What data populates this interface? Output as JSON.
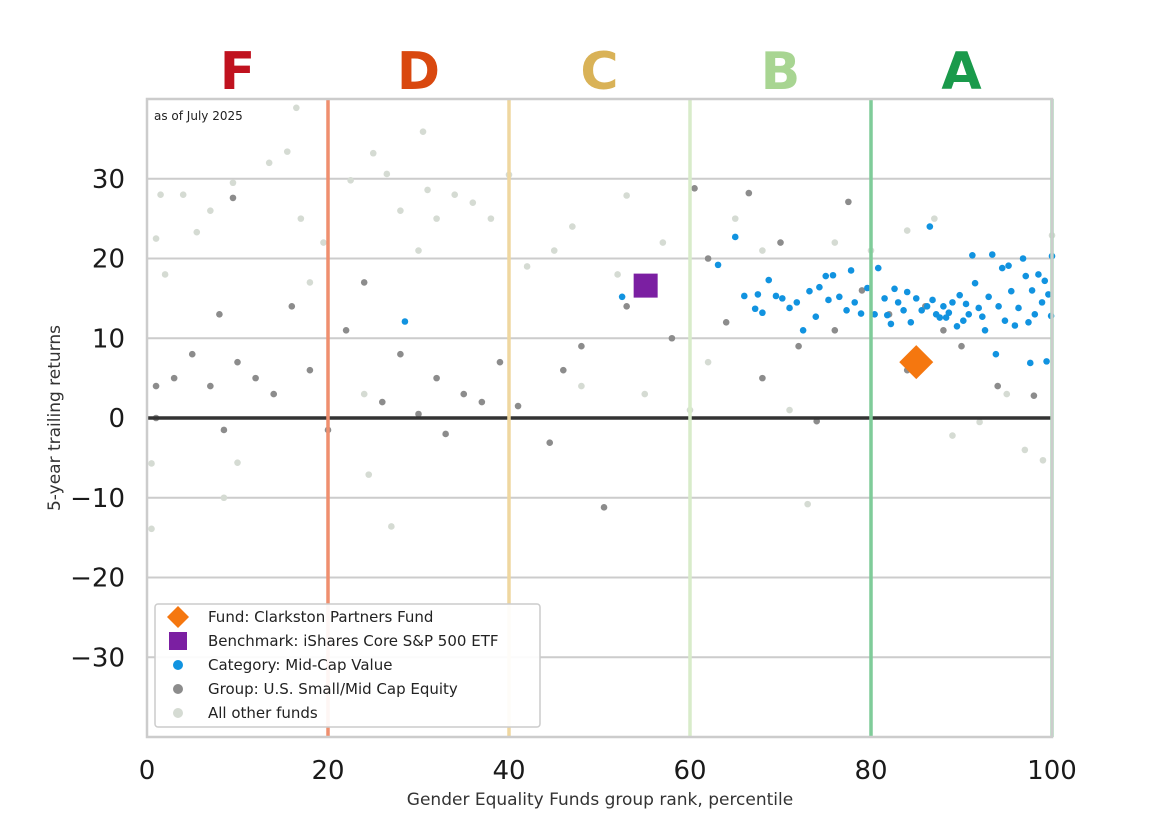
{
  "chart_data": {
    "type": "scatter",
    "note": "as of July 2025",
    "xlabel": "Gender Equality Funds group rank, percentile",
    "ylabel": "5-year trailing returns",
    "xlim": [
      0,
      100
    ],
    "ylim": [
      -40,
      40
    ],
    "xticks": [
      "0",
      "20",
      "40",
      "60",
      "80",
      "100"
    ],
    "yticks": [
      "30",
      "20",
      "10",
      "0",
      "−10",
      "−20",
      "−30"
    ],
    "grades": [
      {
        "letter": "F",
        "x": 10,
        "color": "#c0121f"
      },
      {
        "letter": "D",
        "x": 30,
        "color": "#d9480f"
      },
      {
        "letter": "C",
        "x": 50,
        "color": "#d9b257"
      },
      {
        "letter": "B",
        "x": 70,
        "color": "#a8d592"
      },
      {
        "letter": "A",
        "x": 90,
        "color": "#1a9a4b"
      }
    ],
    "grade_boundaries": [
      {
        "x": 20,
        "color": "#ef8f6f"
      },
      {
        "x": 40,
        "color": "#efd7a0"
      },
      {
        "x": 60,
        "color": "#d8ecca"
      },
      {
        "x": 80,
        "color": "#7fcc99"
      },
      {
        "x": 100,
        "color": "#a7d9b6"
      }
    ],
    "legend": [
      {
        "label": "Fund: Clarkston Partners Fund",
        "marker": "diamond",
        "color": "#f5770f"
      },
      {
        "label": "Benchmark: iShares Core S&P 500 ETF",
        "marker": "square",
        "color": "#7b1fa2"
      },
      {
        "label": "Category: Mid-Cap Value",
        "marker": "circle",
        "color": "#1193e0"
      },
      {
        "label": "Group: U.S. Small/Mid Cap Equity",
        "marker": "circle",
        "color": "#8c8c8c"
      },
      {
        "label": "All other funds",
        "marker": "circle",
        "color": "#d5dbd3"
      }
    ],
    "series": [
      {
        "name": "Fund: Clarkston Partners Fund",
        "color": "#f5770f",
        "marker": "diamond",
        "points": [
          [
            85,
            7
          ]
        ]
      },
      {
        "name": "Benchmark: iShares Core S&P 500 ETF",
        "color": "#7b1fa2",
        "marker": "square",
        "points": [
          [
            55.1,
            16.6
          ]
        ]
      },
      {
        "name": "Category: Mid-Cap Value",
        "color": "#1193e0",
        "marker": "circle",
        "points": [
          [
            28.5,
            12.1
          ],
          [
            52.5,
            15.2
          ],
          [
            63.1,
            19.2
          ],
          [
            65.0,
            22.7
          ],
          [
            66.0,
            15.3
          ],
          [
            67.2,
            13.7
          ],
          [
            67.5,
            15.5
          ],
          [
            68.0,
            13.2
          ],
          [
            68.7,
            17.3
          ],
          [
            69.5,
            15.3
          ],
          [
            70.2,
            15.0
          ],
          [
            71.0,
            13.8
          ],
          [
            71.8,
            14.5
          ],
          [
            72.5,
            11.0
          ],
          [
            73.2,
            15.9
          ],
          [
            73.9,
            12.7
          ],
          [
            74.3,
            16.4
          ],
          [
            75.0,
            17.8
          ],
          [
            75.3,
            14.8
          ],
          [
            75.8,
            17.9
          ],
          [
            76.5,
            15.2
          ],
          [
            77.3,
            13.5
          ],
          [
            77.8,
            18.5
          ],
          [
            78.2,
            14.5
          ],
          [
            78.9,
            13.1
          ],
          [
            79.6,
            16.3
          ],
          [
            80.4,
            13.0
          ],
          [
            80.8,
            18.8
          ],
          [
            81.5,
            15.0
          ],
          [
            81.8,
            12.9
          ],
          [
            82.2,
            11.8
          ],
          [
            82.6,
            16.2
          ],
          [
            83.0,
            14.5
          ],
          [
            83.6,
            13.5
          ],
          [
            84.0,
            15.8
          ],
          [
            84.4,
            12.0
          ],
          [
            85.0,
            15.0
          ],
          [
            85.6,
            13.5
          ],
          [
            86.2,
            14.0
          ],
          [
            86.5,
            24.0
          ],
          [
            86.8,
            14.8
          ],
          [
            87.2,
            13.0
          ],
          [
            87.6,
            12.6
          ],
          [
            88.0,
            14.0
          ],
          [
            88.3,
            12.6
          ],
          [
            88.6,
            13.2
          ],
          [
            89.0,
            14.5
          ],
          [
            89.5,
            11.5
          ],
          [
            89.8,
            15.4
          ],
          [
            90.2,
            12.2
          ],
          [
            90.5,
            14.3
          ],
          [
            90.8,
            13.0
          ],
          [
            91.2,
            20.4
          ],
          [
            91.5,
            16.9
          ],
          [
            91.9,
            13.8
          ],
          [
            92.3,
            12.7
          ],
          [
            92.6,
            11.0
          ],
          [
            93.0,
            15.2
          ],
          [
            93.4,
            20.5
          ],
          [
            93.8,
            8.0
          ],
          [
            94.1,
            14.0
          ],
          [
            94.5,
            18.8
          ],
          [
            94.8,
            12.2
          ],
          [
            95.2,
            19.1
          ],
          [
            95.5,
            15.9
          ],
          [
            95.9,
            11.6
          ],
          [
            96.3,
            13.8
          ],
          [
            96.8,
            20.0
          ],
          [
            97.1,
            17.8
          ],
          [
            97.4,
            12.0
          ],
          [
            97.8,
            16.0
          ],
          [
            98.1,
            13.0
          ],
          [
            98.5,
            18.0
          ],
          [
            98.9,
            14.5
          ],
          [
            99.2,
            17.2
          ],
          [
            99.6,
            15.5
          ],
          [
            99.9,
            12.8
          ],
          [
            100.0,
            20.3
          ],
          [
            99.4,
            7.1
          ],
          [
            97.6,
            6.9
          ]
        ]
      },
      {
        "name": "Group: U.S. Small/Mid Cap Equity",
        "color": "#8c8c8c",
        "marker": "circle",
        "points": [
          [
            1,
            4
          ],
          [
            1,
            0
          ],
          [
            3,
            5
          ],
          [
            5,
            8
          ],
          [
            7,
            4
          ],
          [
            8,
            13
          ],
          [
            9.5,
            27.6
          ],
          [
            10,
            7
          ],
          [
            8.5,
            -1.5
          ],
          [
            12,
            5
          ],
          [
            14,
            3
          ],
          [
            16,
            14
          ],
          [
            18,
            6
          ],
          [
            20,
            -1.5
          ],
          [
            22,
            11
          ],
          [
            24,
            17
          ],
          [
            26,
            2
          ],
          [
            28,
            8
          ],
          [
            30,
            0.5
          ],
          [
            32,
            5
          ],
          [
            33,
            -2
          ],
          [
            35,
            3
          ],
          [
            37,
            2
          ],
          [
            39,
            7
          ],
          [
            41,
            1.5
          ],
          [
            44.5,
            -3.1
          ],
          [
            46,
            6
          ],
          [
            48,
            9
          ],
          [
            50.5,
            -11.2
          ],
          [
            53,
            14
          ],
          [
            56,
            17
          ],
          [
            58,
            10
          ],
          [
            60.5,
            28.8
          ],
          [
            62,
            20
          ],
          [
            64,
            12
          ],
          [
            66.5,
            28.2
          ],
          [
            68,
            5
          ],
          [
            70,
            22
          ],
          [
            72,
            9
          ],
          [
            74,
            -0.4
          ],
          [
            76,
            11
          ],
          [
            77.5,
            27.1
          ],
          [
            79,
            16
          ],
          [
            82,
            13
          ],
          [
            84,
            6
          ],
          [
            86,
            14
          ],
          [
            88,
            11
          ],
          [
            90,
            9
          ],
          [
            94,
            4
          ],
          [
            98,
            2.8
          ]
        ]
      },
      {
        "name": "All other funds",
        "color": "#d5dbd3",
        "marker": "circle",
        "points": [
          [
            0.5,
            -5.7
          ],
          [
            0.5,
            -13.9
          ],
          [
            1,
            22.5
          ],
          [
            1.5,
            28
          ],
          [
            2,
            18
          ],
          [
            4,
            28
          ],
          [
            5.5,
            23.3
          ],
          [
            7,
            26
          ],
          [
            8.5,
            -10
          ],
          [
            9.5,
            29.5
          ],
          [
            10,
            -5.6
          ],
          [
            13.5,
            32
          ],
          [
            15.5,
            33.4
          ],
          [
            16.5,
            38.9
          ],
          [
            17,
            25
          ],
          [
            18,
            17
          ],
          [
            19.5,
            22
          ],
          [
            22.5,
            29.8
          ],
          [
            24,
            3
          ],
          [
            24.5,
            -7.1
          ],
          [
            25,
            33.2
          ],
          [
            26.5,
            30.6
          ],
          [
            27,
            -13.6
          ],
          [
            28,
            26
          ],
          [
            30,
            21
          ],
          [
            30.5,
            35.9
          ],
          [
            31,
            28.6
          ],
          [
            32,
            25
          ],
          [
            34,
            28
          ],
          [
            36,
            27
          ],
          [
            38,
            25
          ],
          [
            40,
            30.5
          ],
          [
            42,
            19
          ],
          [
            45,
            21
          ],
          [
            47,
            24
          ],
          [
            48,
            4
          ],
          [
            52,
            18
          ],
          [
            53,
            27.9
          ],
          [
            55,
            3
          ],
          [
            57,
            22
          ],
          [
            60,
            1
          ],
          [
            62,
            7
          ],
          [
            65,
            25
          ],
          [
            68,
            21
          ],
          [
            71,
            1
          ],
          [
            73,
            -10.8
          ],
          [
            76,
            22
          ],
          [
            80,
            21
          ],
          [
            84,
            23.5
          ],
          [
            87,
            25
          ],
          [
            89,
            -2.2
          ],
          [
            92,
            -0.5
          ],
          [
            95,
            3
          ],
          [
            97,
            -4
          ],
          [
            99,
            -5.3
          ],
          [
            100,
            22.9
          ]
        ]
      }
    ]
  }
}
